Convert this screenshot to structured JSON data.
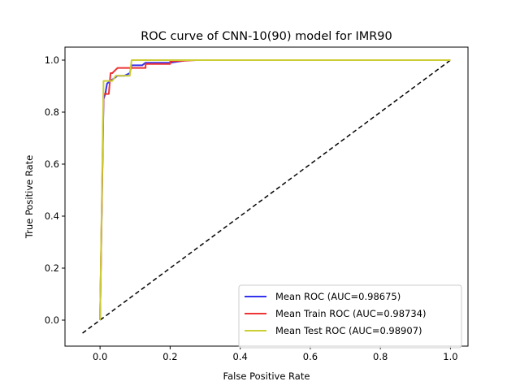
{
  "chart_data": {
    "type": "line",
    "title": "ROC curve of CNN-10(90) model for IMR90",
    "xlabel": "False Positive Rate",
    "ylabel": "True Positive Rate",
    "xlim": [
      -0.1,
      1.05
    ],
    "ylim": [
      -0.1,
      1.05
    ],
    "xticks": [
      0.0,
      0.2,
      0.4,
      0.6,
      0.8,
      1.0
    ],
    "yticks": [
      0.0,
      0.2,
      0.4,
      0.6,
      0.8,
      1.0
    ],
    "xtick_labels": [
      "0.0",
      "0.2",
      "0.4",
      "0.6",
      "0.8",
      "1.0"
    ],
    "ytick_labels": [
      "0.0",
      "0.2",
      "0.4",
      "0.6",
      "0.8",
      "1.0"
    ],
    "grid": false,
    "legend_position": "lower-right",
    "reference_line": {
      "x": [
        -0.05,
        1.0
      ],
      "y": [
        -0.05,
        1.0
      ],
      "color": "#000000",
      "style": "dashed"
    },
    "series": [
      {
        "name": "Mean ROC (AUC=0.98675)",
        "color": "#3333ee",
        "x": [
          0.0,
          0.01,
          0.015,
          0.02,
          0.03,
          0.04,
          0.05,
          0.07,
          0.085,
          0.09,
          0.12,
          0.13,
          0.2,
          0.25,
          0.3,
          1.0
        ],
        "y": [
          0.0,
          0.85,
          0.87,
          0.91,
          0.92,
          0.93,
          0.94,
          0.94,
          0.95,
          0.98,
          0.98,
          0.99,
          0.99,
          1.0,
          1.0,
          1.0
        ]
      },
      {
        "name": "Mean Train ROC (AUC=0.98734)",
        "color": "#ee3333",
        "x": [
          0.0,
          0.01,
          0.015,
          0.025,
          0.03,
          0.035,
          0.05,
          0.06,
          0.09,
          0.09,
          0.13,
          0.13,
          0.2,
          0.2,
          0.275,
          1.0
        ],
        "y": [
          0.0,
          0.87,
          0.87,
          0.87,
          0.95,
          0.95,
          0.97,
          0.97,
          0.97,
          0.97,
          0.97,
          0.985,
          0.985,
          0.995,
          1.0,
          1.0
        ]
      },
      {
        "name": "Mean Test ROC (AUC=0.98907)",
        "color": "#cccc33",
        "x": [
          0.0,
          0.01,
          0.01,
          0.035,
          0.045,
          0.085,
          0.09,
          1.0
        ],
        "y": [
          0.0,
          0.92,
          0.92,
          0.92,
          0.94,
          0.94,
          1.0,
          1.0
        ]
      }
    ]
  }
}
